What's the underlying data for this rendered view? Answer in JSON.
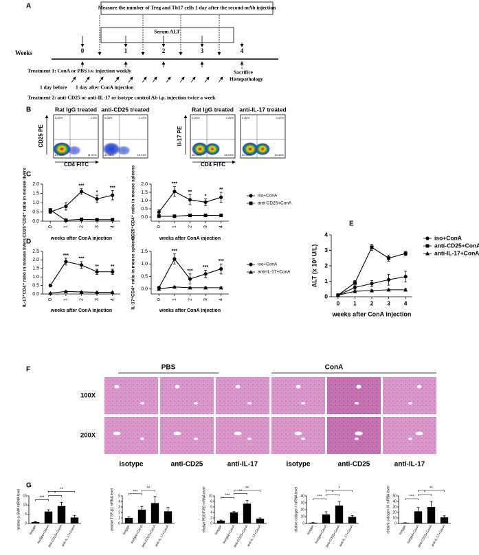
{
  "panel_labels": [
    "A",
    "B",
    "C",
    "D",
    "E",
    "F",
    "G"
  ],
  "timeline": {
    "measure": "Measure the number of  Treg and Th17 cells 1 day after the second mAb injection",
    "serum": "Serum ALT",
    "weeks_label": "Weeks",
    "weeks": [
      "0",
      "1",
      "2",
      "3",
      "4"
    ],
    "treatment1": "Treatment 1:  ConA or PBS i.v. injection weekly",
    "before": "1 day before",
    "after": "1 day after ConA injection",
    "treatment2": "Treatment 2:  anti-CD25 or anti-IL-17 or isotype control Ab i.p. injection twice a week",
    "sacrifice": "Sacrifice",
    "histopathology": "Histopathology"
  },
  "flow": {
    "plots": [
      {
        "title": "Rat IgG treated",
        "quadrants": [
          "0.09%",
          "1.5%",
          "83.33%",
          "11.57%"
        ]
      },
      {
        "title": "anti-CD25 treated",
        "quadrants": [
          "0.08%",
          "0.12%",
          "83.96%",
          "16.21%"
        ]
      },
      {
        "title": "Rat IgG treated",
        "quadrants": [
          "0.03%",
          "2.26%",
          "48.23%",
          "48.03%"
        ]
      },
      {
        "title": "anti-IL-17 treated",
        "quadrants": [
          "0.00%",
          "0.02%",
          "59.34%",
          "40.49%"
        ]
      }
    ],
    "y_labels": [
      "CD25 PE",
      "Il-17 PE"
    ],
    "x_labels": [
      "CD4 FITC",
      "CD4 FITC"
    ]
  },
  "histology": {
    "group_labels": [
      "PBS",
      "ConA"
    ],
    "row_labels": [
      "100X",
      "200X"
    ],
    "column_labels": [
      "isotype",
      "anti-CD25",
      "anti-IL-17",
      "isotype",
      "anti-CD25",
      "anti-IL-17"
    ]
  },
  "chart_data": [
    {
      "type": "line",
      "y_label": "CD25⁺CD4⁺ ratio in mouse livers",
      "x_label": "weeks after ConA injection",
      "x": [
        0,
        1,
        2,
        3,
        4
      ],
      "xlim": [
        -0.5,
        4.5
      ],
      "xticks": [
        0,
        1,
        2,
        3,
        4
      ],
      "ylim": [
        0,
        2
      ],
      "yticks": [
        {
          "value": 0,
          "label": "0.0"
        },
        {
          "value": 0.5,
          "label": "0.5"
        },
        {
          "value": 1,
          "label": "1.0"
        },
        {
          "value": 1.5,
          "label": "1.5"
        },
        {
          "value": 2,
          "label": "2.0"
        }
      ],
      "series": [
        {
          "marker": "circle",
          "color": "#000000",
          "values": [
            0.5,
            0.8,
            1.6,
            1.2,
            1.4
          ],
          "errors": [
            0.08,
            0.2,
            0.15,
            0.2,
            0.25
          ]
        },
        {
          "marker": "square",
          "color": "#000000",
          "values": [
            0.6,
            0.05,
            0.1,
            0.08,
            0.08
          ],
          "errors": [
            0.08,
            0.03,
            0.03,
            0.03,
            0.03
          ]
        }
      ],
      "stars": [
        null,
        null,
        "***",
        "*",
        "***"
      ]
    },
    {
      "type": "line",
      "y_label": "CD25⁺CD4⁺ ratio in mouse spleens",
      "x_label": "weeks after ConA injection",
      "x": [
        0,
        1,
        2,
        3,
        4
      ],
      "xlim": [
        -0.5,
        4.5
      ],
      "xticks": [
        0,
        1,
        2,
        3,
        4
      ],
      "ylim": [
        -0.25,
        2
      ],
      "yticks": [
        {
          "value": 0,
          "label": "0.0"
        },
        {
          "value": 0.5,
          "label": "0.5"
        },
        {
          "value": 1,
          "label": "1.0"
        },
        {
          "value": 1.5,
          "label": "1.5"
        },
        {
          "value": 2,
          "label": "2.0"
        }
      ],
      "series": [
        {
          "name": "iso+ConA",
          "marker": "circle",
          "color": "#000000",
          "values": [
            0.3,
            1.55,
            1.05,
            0.9,
            1.2
          ],
          "errors": [
            0.15,
            0.3,
            0.3,
            0.2,
            0.3
          ]
        },
        {
          "name": "anti-CD25+ConA",
          "marker": "square",
          "color": "#000000",
          "values": [
            0.05,
            0.05,
            0.1,
            0.1,
            0.1
          ],
          "errors": [
            0.05,
            0.03,
            0.05,
            0.03,
            0.03
          ]
        }
      ],
      "stars": [
        null,
        "***",
        "**",
        "*",
        "**"
      ]
    },
    {
      "type": "line",
      "y_label": "IL-17⁺CD4⁺ ratio in mouse livers",
      "x_label": "weeks after ConA injection",
      "x": [
        0,
        1,
        2,
        3,
        4
      ],
      "xlim": [
        -0.5,
        4.5
      ],
      "xticks": [
        0,
        1,
        2,
        3,
        4
      ],
      "ylim": [
        0,
        2.5
      ],
      "yticks": [
        {
          "value": 0,
          "label": "0.0"
        },
        {
          "value": 0.5,
          "label": "0.5"
        },
        {
          "value": 1,
          "label": "1.0"
        },
        {
          "value": 1.5,
          "label": "1.5"
        },
        {
          "value": 2,
          "label": "2.0"
        },
        {
          "value": 2.5,
          "label": "2.5"
        }
      ],
      "series": [
        {
          "marker": "circle",
          "color": "#000000",
          "values": [
            0.5,
            1.9,
            1.7,
            1.3,
            1.3
          ],
          "errors": [
            0.08,
            0.2,
            0.2,
            0.15,
            0.15
          ]
        },
        {
          "marker": "triangle",
          "color": "#000000",
          "values": [
            0.05,
            0.15,
            0.12,
            0.1,
            0.1
          ],
          "errors": [
            0.03,
            0.03,
            0.03,
            0.03,
            0.03
          ]
        }
      ],
      "stars": [
        null,
        "***",
        "***",
        "**",
        "**"
      ]
    },
    {
      "type": "line",
      "y_label": "IL-17⁺CD4⁺ ratio in mouse spleens",
      "x_label": "weeks after ConA injection",
      "x": [
        0,
        1,
        2,
        3,
        4
      ],
      "xlim": [
        -0.5,
        4.5
      ],
      "xticks": [
        0,
        1,
        2,
        3,
        4
      ],
      "ylim": [
        -0.2,
        1.5
      ],
      "yticks": [
        {
          "value": 0,
          "label": "0.0"
        },
        {
          "value": 0.5,
          "label": "0.5"
        },
        {
          "value": 1,
          "label": "1.0"
        },
        {
          "value": 1.5,
          "label": "1.5"
        }
      ],
      "series": [
        {
          "name": "iso+ConA",
          "marker": "circle",
          "color": "#000000",
          "values": [
            0.05,
            1.2,
            0.4,
            0.6,
            0.8
          ],
          "errors": [
            0.05,
            0.2,
            0.2,
            0.15,
            0.2
          ]
        },
        {
          "name": "anti-IL-17+ConA",
          "marker": "triangle",
          "color": "#000000",
          "values": [
            0,
            0.08,
            0.05,
            0.05,
            0.05
          ],
          "errors": [
            0.03,
            0.03,
            0.03,
            0.03,
            0.03
          ]
        }
      ],
      "stars": [
        null,
        "***",
        "***",
        "***",
        "***"
      ]
    },
    {
      "type": "line",
      "y_label": "ALT (x 10³ U/L)",
      "x_label": "weeks after ConA injection",
      "x": [
        0,
        1,
        2,
        3,
        4
      ],
      "xlim": [
        -0.4,
        4.4
      ],
      "xticks": [
        0,
        1,
        2,
        3,
        4
      ],
      "ylim": [
        0,
        4
      ],
      "yticks": [
        0,
        1,
        2,
        3,
        4
      ],
      "series": [
        {
          "name": "iso+ConA",
          "marker": "circle",
          "color": "#000000",
          "values": [
            0.1,
            0.6,
            0.85,
            1.1,
            1.3
          ],
          "errors": [
            0.05,
            0.15,
            0.2,
            0.35,
            0.35
          ]
        },
        {
          "name": "anti-CD25+ConA",
          "marker": "square",
          "color": "#000000",
          "values": [
            0.1,
            0.9,
            3.2,
            2.5,
            2.8
          ],
          "errors": [
            0.05,
            0.15,
            0.2,
            0.2,
            0.15
          ]
        },
        {
          "name": "anti-IL-17+ConA",
          "marker": "triangle",
          "color": "#000000",
          "values": [
            0.1,
            0.35,
            0.4,
            0.45,
            0.45
          ],
          "errors": [
            0.03,
            0.05,
            0.05,
            0.05,
            0.08
          ]
        }
      ]
    },
    {
      "type": "bar",
      "y_label": "relative α-SMA mRNA level",
      "categories": [
        "isotype",
        "isotype+ConA",
        "anti-CD25+ConA",
        "anti-IL-17+ConA"
      ],
      "values": [
        0.8,
        6.5,
        9.5,
        3.2
      ],
      "errors": [
        0.2,
        1,
        2,
        1.2
      ],
      "color": "#000000",
      "ylim": [
        0,
        15
      ],
      "yticks": [
        0,
        5,
        10,
        15
      ],
      "significance": [
        "***",
        "*",
        "**"
      ]
    },
    {
      "type": "bar",
      "y_label": "relative TGF-β1 mRNA level",
      "categories": [
        "isotype",
        "isotype+ConA",
        "anti-CD25+ConA",
        "anti-IL-17+ConA"
      ],
      "values": [
        1,
        2.5,
        3.7,
        2.2
      ],
      "errors": [
        0.2,
        0.6,
        1.2,
        0.7
      ],
      "color": "#000000",
      "ylim": [
        0,
        5
      ],
      "yticks": [
        0,
        1,
        2,
        3,
        4,
        5
      ],
      "significance": [
        "***",
        "**"
      ]
    },
    {
      "type": "bar",
      "y_label": "relative PDGF-Rβ mRNA level",
      "categories": [
        "isotype",
        "isotype+ConA",
        "anti-CD25+ConA",
        "anti-IL-17+ConA"
      ],
      "values": [
        1,
        4,
        7.2,
        1.7
      ],
      "errors": [
        0.2,
        0.3,
        1.2,
        0.3
      ],
      "color": "#000000",
      "ylim": [
        0,
        10
      ],
      "yticks": [
        0,
        2,
        4,
        6,
        8,
        10
      ],
      "significance": [
        "***",
        "**",
        "**"
      ]
    },
    {
      "type": "bar",
      "y_label": "relative collagen I mRNA level",
      "categories": [
        "isotype",
        "isotype+ConA",
        "anti-CD25+ConA",
        "anti-IL-17+ConA"
      ],
      "values": [
        1,
        13,
        26,
        9.5
      ],
      "errors": [
        0.3,
        4,
        6,
        2
      ],
      "color": "#000000",
      "ylim": [
        0,
        40
      ],
      "yticks": [
        0,
        10,
        20,
        30,
        40
      ],
      "significance": [
        "***",
        "*",
        "*"
      ]
    },
    {
      "type": "bar",
      "y_label": "relative collagen III mRNA level",
      "categories": [
        "isotype",
        "isotype+ConA",
        "anti-CD25+ConA",
        "anti-IL-17+ConA"
      ],
      "values": [
        1,
        22,
        30,
        11
      ],
      "errors": [
        0.3,
        7,
        10,
        3
      ],
      "color": "#000000",
      "ylim": [
        0,
        50
      ],
      "yticks": [
        0,
        10,
        20,
        30,
        40,
        50
      ],
      "significance": [
        "***",
        "*",
        "**"
      ]
    }
  ]
}
